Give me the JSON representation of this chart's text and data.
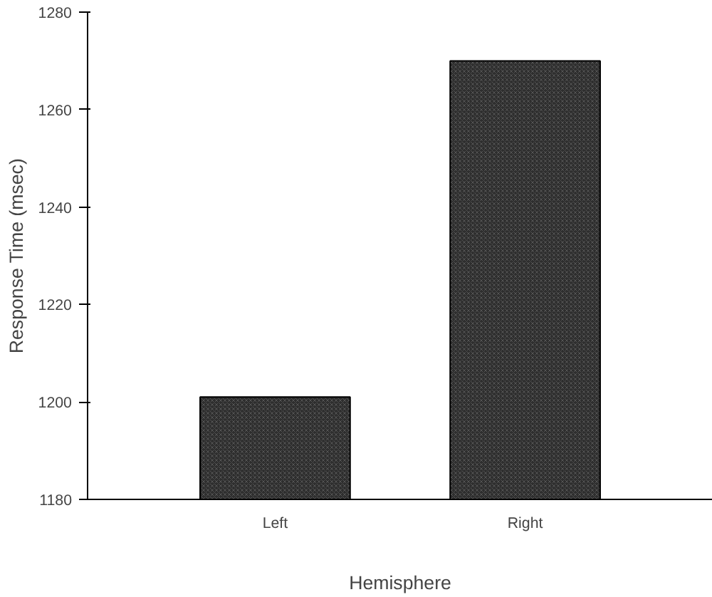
{
  "chart_data": {
    "type": "bar",
    "xlabel": "Hemisphere",
    "ylabel": "Response Time (msec)",
    "categories": [
      "Left",
      "Right"
    ],
    "values": [
      1201,
      1270
    ],
    "color": "#2e2e2e",
    "ylim": [
      1180,
      1280
    ],
    "yticks": [
      1180,
      1200,
      1220,
      1240,
      1260,
      1280
    ],
    "grid": false
  }
}
